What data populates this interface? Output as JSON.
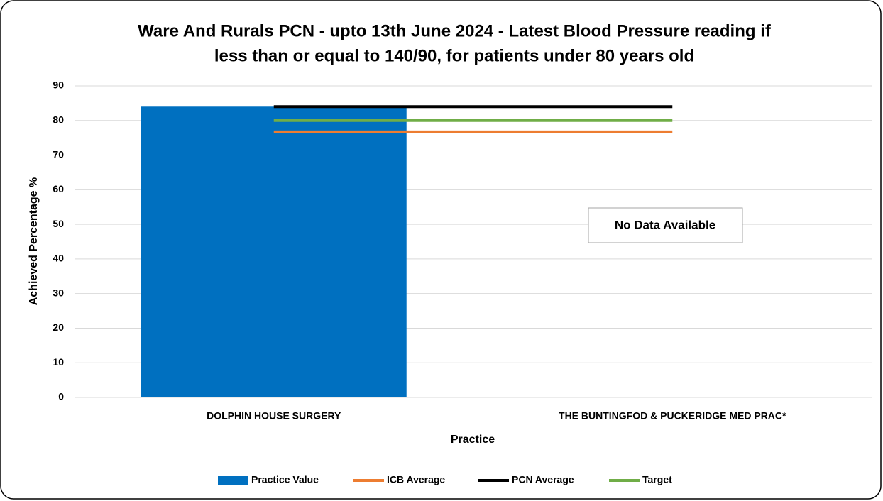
{
  "chart_data": {
    "type": "bar",
    "title": [
      "Ware And Rurals PCN - upto 13th June 2024 - Latest Blood Pressure reading if",
      "less than or equal to 140/90, for patients under 80 years old"
    ],
    "x_label": "Practice",
    "y_label": "Achieved Percentage %",
    "categories": [
      "DOLPHIN HOUSE SURGERY",
      "THE BUNTINGFOD & PUCKERIDGE MED PRAC*"
    ],
    "series": [
      {
        "name": "Practice Value",
        "type": "bar",
        "color": "#0070c0",
        "values": [
          84,
          null
        ]
      },
      {
        "name": "ICB Average",
        "type": "line",
        "color": "#ed7d31",
        "values": [
          76.7,
          76.7
        ]
      },
      {
        "name": "PCN Average",
        "type": "line",
        "color": "#000000",
        "values": [
          84,
          84
        ]
      },
      {
        "name": "Target",
        "type": "line",
        "color": "#70ad47",
        "values": [
          80,
          80
        ]
      }
    ],
    "ylim": [
      0,
      90
    ],
    "yticks": [
      0,
      10,
      20,
      30,
      40,
      50,
      60,
      70,
      80,
      90
    ],
    "grid": true,
    "annotation": "No Data Available",
    "legend": "bottom"
  }
}
